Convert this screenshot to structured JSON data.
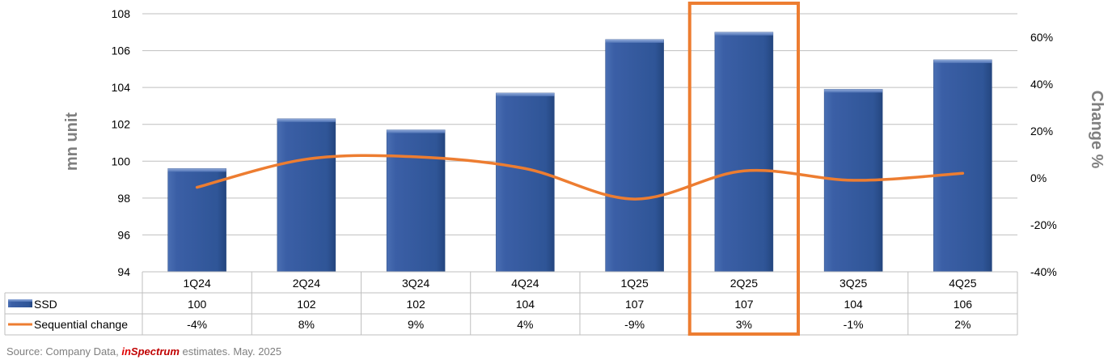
{
  "chart_data": {
    "type": "bar",
    "categories": [
      "1Q24",
      "2Q24",
      "3Q24",
      "4Q24",
      "1Q25",
      "2Q25",
      "3Q25",
      "4Q25"
    ],
    "series": [
      {
        "name": "SSD",
        "type": "bar",
        "axis": "left",
        "color": "#2F5597",
        "values": [
          99.6,
          102.3,
          101.7,
          103.7,
          106.6,
          107.0,
          103.9,
          105.5
        ],
        "table_labels": [
          "100",
          "102",
          "102",
          "104",
          "107",
          "107",
          "104",
          "106"
        ]
      },
      {
        "name": "Sequential change",
        "type": "line",
        "axis": "right",
        "color": "#ED7D31",
        "values": [
          -4,
          8,
          9,
          4,
          -9,
          3,
          -1,
          2
        ],
        "table_labels": [
          "-4%",
          "8%",
          "9%",
          "4%",
          "-9%",
          "3%",
          "-1%",
          "2%"
        ]
      }
    ],
    "ylabel": "mn unit",
    "ylim": [
      94,
      108
    ],
    "yticks": [
      "94",
      "96",
      "98",
      "100",
      "102",
      "104",
      "106",
      "108"
    ],
    "y2label": "Change %",
    "y2lim": [
      -40,
      70
    ],
    "y2ticks": [
      "-40%",
      "-20%",
      "0%",
      "20%",
      "40%",
      "60%"
    ],
    "grid": true,
    "data_table": true,
    "highlighted_category": "2Q25",
    "highlight_color": "#ED7D31"
  },
  "source": {
    "prefix": "Source: Company Data,",
    "brand_in": "in",
    "brand_rest": "Spectrum",
    "suffix": "estimates. May. 2025"
  }
}
